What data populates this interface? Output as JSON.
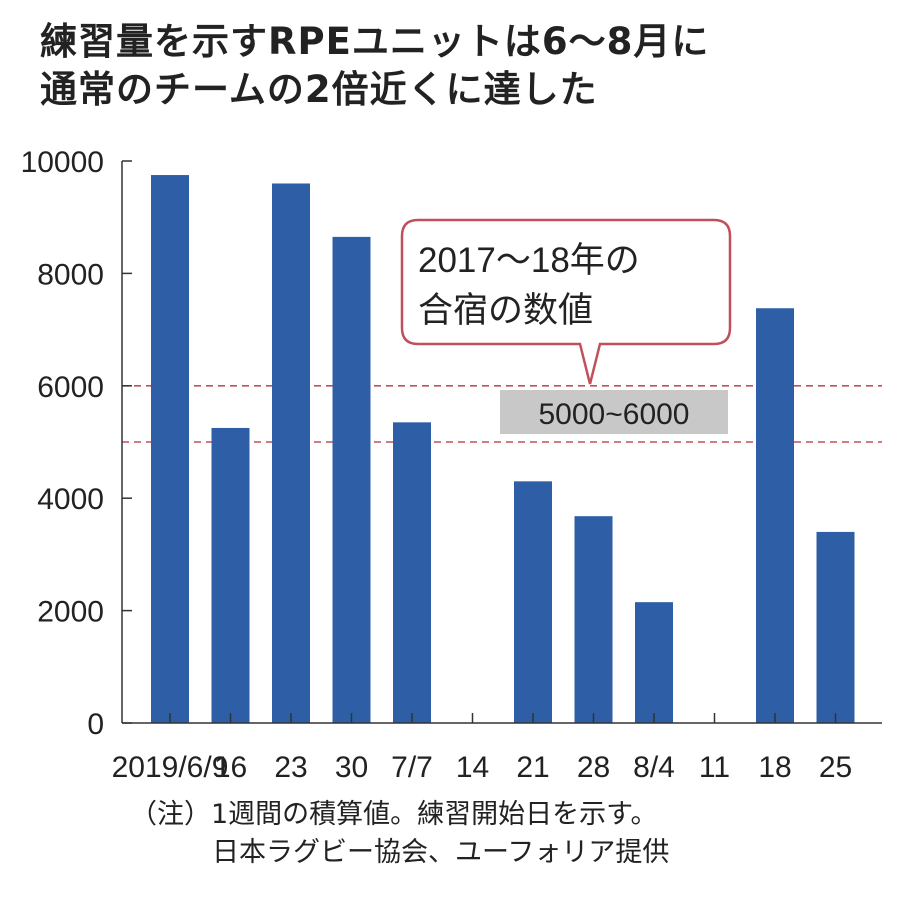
{
  "title_lines": [
    "練習量を示すRPEユニットは6〜8月に",
    "通常のチームの2倍近くに達した"
  ],
  "callout": {
    "lines": [
      "2017〜18年の",
      "合宿の数値"
    ],
    "band_label": "5000~6000"
  },
  "notes": [
    "（注）1週間の積算値。練習開始日を示す。",
    "日本ラグビー協会、ユーフォリア提供"
  ],
  "colors": {
    "bar": "#2e5fa6",
    "ref_line": "#c0505a",
    "callout_border": "#c0505a",
    "band_label_bg": "#c8c8c8"
  },
  "chart_data": {
    "type": "bar",
    "categories": [
      "2019/6/9",
      "16",
      "23",
      "30",
      "7/7",
      "14",
      "21",
      "28",
      "8/4",
      "11",
      "18",
      "25"
    ],
    "values": [
      9750,
      5250,
      9600,
      8650,
      5350,
      null,
      4300,
      3680,
      2150,
      null,
      7380,
      3400
    ],
    "ylim": [
      0,
      10000
    ],
    "yticks": [
      0,
      2000,
      4000,
      6000,
      8000,
      10000
    ],
    "reference_lines": [
      5000,
      6000
    ]
  }
}
